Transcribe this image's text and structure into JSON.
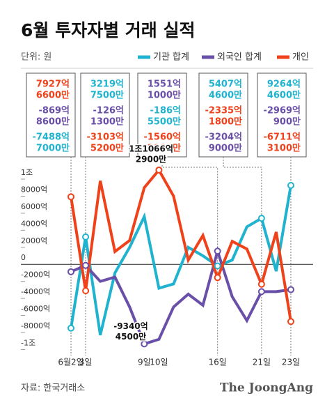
{
  "chart_data": {
    "type": "line",
    "title": "6월 투자자별 거래 실적",
    "unit": "단위: 원",
    "source": "자료: 한국거래소",
    "brand": "The JoongAng",
    "categories": [
      "6월2일",
      "3일",
      null,
      null,
      null,
      "9일",
      "10일",
      null,
      null,
      null,
      "16일",
      null,
      null,
      "21일",
      null,
      "23일"
    ],
    "series": [
      {
        "name": "기관 합계",
        "color": "#1fb3cf",
        "values": [
          -7488,
          3219,
          -8300,
          -1000,
          2000,
          5600,
          -2800,
          -2300,
          2000,
          1000,
          -186,
          500,
          4400,
          5407,
          -800,
          9264
        ]
      },
      {
        "name": "외국인 합계",
        "color": "#6a4fa8",
        "values": [
          -869,
          -126,
          -2000,
          -1500,
          -5000,
          -9340,
          -8800,
          -5000,
          -3500,
          -4800,
          1551,
          -3800,
          -6600,
          -3204,
          -3200,
          -2969
        ]
      },
      {
        "name": "개인",
        "color": "#f0421a",
        "values": [
          7927,
          -3103,
          9800,
          1500,
          2800,
          9000,
          11066,
          8000,
          500,
          3400,
          -1560,
          2700,
          1800,
          -2335,
          3800,
          -6711
        ]
      }
    ],
    "ylim": [
      -10700,
      11800
    ],
    "yticks": [
      {
        "value": 10000,
        "label": "1조"
      },
      {
        "value": 8000,
        "label": "8000억"
      },
      {
        "value": 6000,
        "label": "6000억"
      },
      {
        "value": 4000,
        "label": "4000억"
      },
      {
        "value": 2000,
        "label": "2000억"
      },
      0,
      {
        "value": -2000,
        "label": "-2000억"
      },
      {
        "value": -4000,
        "label": "-4000억"
      },
      {
        "value": -6000,
        "label": "-6000억"
      },
      {
        "value": -8000,
        "label": "-8000억"
      },
      {
        "value": -10000,
        "label": "-1조"
      }
    ],
    "boxes": [
      [
        {
          "text": [
            "7927억",
            "6600만"
          ],
          "color": "#f0421a"
        },
        {
          "text": [
            "-869억",
            "8600만"
          ],
          "color": "#6a4fa8"
        },
        {
          "text": [
            "-7488억",
            "7000만"
          ],
          "color": "#1fb3cf"
        }
      ],
      [
        {
          "text": [
            "3219억",
            "7500만"
          ],
          "color": "#1fb3cf"
        },
        {
          "text": [
            "-126억",
            "1300만"
          ],
          "color": "#6a4fa8"
        },
        {
          "text": [
            "-3103억",
            "5200만"
          ],
          "color": "#f0421a"
        }
      ],
      [
        {
          "text": [
            "1551억",
            "1000만"
          ],
          "color": "#6a4fa8"
        },
        {
          "text": [
            "-186억",
            "5500만"
          ],
          "color": "#1fb3cf"
        },
        {
          "text": [
            "-1560억",
            "2900만"
          ],
          "color": "#f0421a"
        }
      ],
      [
        {
          "text": [
            "5407억",
            "4600만"
          ],
          "color": "#1fb3cf"
        },
        {
          "text": [
            "-2335억",
            "1800만"
          ],
          "color": "#f0421a"
        },
        {
          "text": [
            "-3204억",
            "9000만"
          ],
          "color": "#6a4fa8"
        }
      ],
      [
        {
          "text": [
            "9264억",
            "4600만"
          ],
          "color": "#1fb3cf"
        },
        {
          "text": [
            "-2969억",
            "900만"
          ],
          "color": "#6a4fa8"
        },
        {
          "text": [
            "-6711억",
            "3100만"
          ],
          "color": "#f0421a"
        }
      ]
    ],
    "callouts": [
      {
        "text": [
          "1조1066억",
          "2900만"
        ]
      },
      {
        "text": [
          "-9340억",
          "4500만"
        ]
      }
    ]
  }
}
